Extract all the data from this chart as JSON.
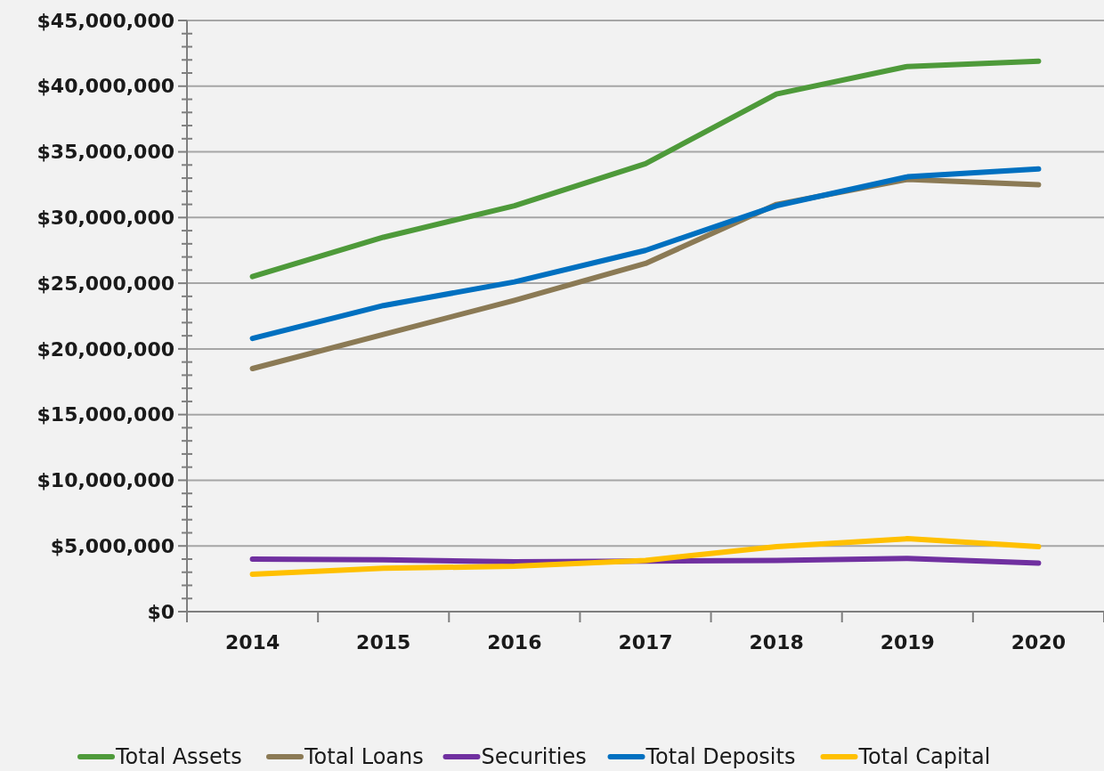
{
  "chart_data": {
    "type": "line",
    "categories": [
      "2014",
      "2015",
      "2016",
      "2017",
      "2018",
      "2019",
      "2020"
    ],
    "series": [
      {
        "name": "Total Assets",
        "color": "#4e9a3a",
        "values": [
          25500000,
          28500000,
          30900000,
          34100000,
          39400000,
          41500000,
          41900000
        ]
      },
      {
        "name": "Total Loans",
        "color": "#8b7a55",
        "values": [
          18500000,
          21100000,
          23700000,
          26500000,
          31000000,
          32900000,
          32500000
        ]
      },
      {
        "name": "Securities",
        "color": "#7030a0",
        "values": [
          4000000,
          3950000,
          3800000,
          3850000,
          3900000,
          4050000,
          3700000
        ]
      },
      {
        "name": "Total Deposits",
        "color": "#0070c0",
        "values": [
          20800000,
          23300000,
          25100000,
          27500000,
          30900000,
          33100000,
          33700000
        ]
      },
      {
        "name": "Total Capital",
        "color": "#ffc000",
        "values": [
          2850000,
          3300000,
          3450000,
          3900000,
          4950000,
          5550000,
          4950000
        ]
      }
    ],
    "ylim": [
      0,
      45000000
    ],
    "yticks": [
      {
        "value": 0,
        "label": "$0"
      },
      {
        "value": 1000000,
        "label": null
      },
      {
        "value": 2000000,
        "label": null
      },
      {
        "value": 3000000,
        "label": null
      },
      {
        "value": 4000000,
        "label": null
      },
      {
        "value": 5000000,
        "label": "$5,000,000"
      },
      {
        "value": 6000000,
        "label": null
      },
      {
        "value": 7000000,
        "label": null
      },
      {
        "value": 8000000,
        "label": null
      },
      {
        "value": 9000000,
        "label": null
      },
      {
        "value": 10000000,
        "label": "$10,000,000"
      },
      {
        "value": 11000000,
        "label": null
      },
      {
        "value": 12000000,
        "label": null
      },
      {
        "value": 13000000,
        "label": null
      },
      {
        "value": 14000000,
        "label": null
      },
      {
        "value": 15000000,
        "label": "$15,000,000"
      },
      {
        "value": 16000000,
        "label": null
      },
      {
        "value": 17000000,
        "label": null
      },
      {
        "value": 18000000,
        "label": null
      },
      {
        "value": 19000000,
        "label": null
      },
      {
        "value": 20000000,
        "label": "$20,000,000"
      },
      {
        "value": 21000000,
        "label": null
      },
      {
        "value": 22000000,
        "label": null
      },
      {
        "value": 23000000,
        "label": null
      },
      {
        "value": 24000000,
        "label": null
      },
      {
        "value": 25000000,
        "label": "$25,000,000"
      },
      {
        "value": 26000000,
        "label": null
      },
      {
        "value": 27000000,
        "label": null
      },
      {
        "value": 28000000,
        "label": null
      },
      {
        "value": 29000000,
        "label": null
      },
      {
        "value": 30000000,
        "label": "$30,000,000"
      },
      {
        "value": 31000000,
        "label": null
      },
      {
        "value": 32000000,
        "label": null
      },
      {
        "value": 33000000,
        "label": null
      },
      {
        "value": 34000000,
        "label": null
      },
      {
        "value": 35000000,
        "label": "$35,000,000"
      },
      {
        "value": 36000000,
        "label": null
      },
      {
        "value": 37000000,
        "label": null
      },
      {
        "value": 38000000,
        "label": null
      },
      {
        "value": 39000000,
        "label": null
      },
      {
        "value": 40000000,
        "label": "$40,000,000"
      },
      {
        "value": 41000000,
        "label": null
      },
      {
        "value": 42000000,
        "label": null
      },
      {
        "value": 43000000,
        "label": null
      },
      {
        "value": 44000000,
        "label": null
      },
      {
        "value": 45000000,
        "label": "$45,000,000"
      }
    ],
    "grid": "y",
    "legend": "bottom",
    "marker": "none",
    "line_style": "solid"
  }
}
